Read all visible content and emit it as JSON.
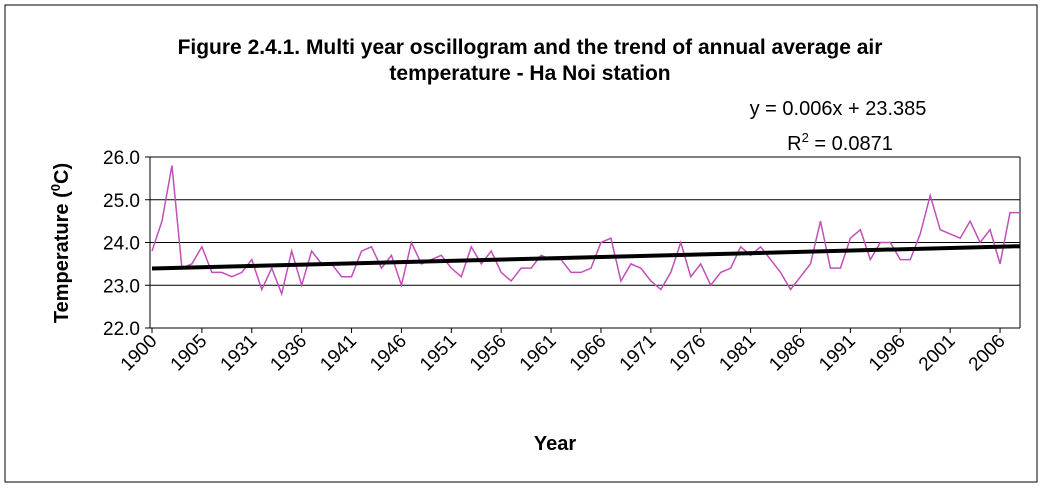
{
  "chart_data": {
    "type": "line",
    "title": [
      "Figure 2.4.1. Multi year oscillogram and the trend of annual average air",
      "temperature - Ha Noi station"
    ],
    "x_label": "Year",
    "y_label": [
      "Temperature (",
      "0",
      "C)"
    ],
    "categories": [
      "1900",
      null,
      null,
      null,
      null,
      "1905",
      null,
      null,
      null,
      null,
      "1931",
      null,
      null,
      null,
      null,
      "1936",
      null,
      null,
      null,
      null,
      "1941",
      null,
      null,
      null,
      null,
      "1946",
      null,
      null,
      null,
      null,
      "1951",
      null,
      null,
      null,
      null,
      "1956",
      null,
      null,
      null,
      null,
      "1961",
      null,
      null,
      null,
      null,
      "1966",
      null,
      null,
      null,
      null,
      "1971",
      null,
      null,
      null,
      null,
      "1976",
      null,
      null,
      null,
      null,
      "1981",
      null,
      null,
      null,
      null,
      "1986",
      null,
      null,
      null,
      null,
      "1991",
      null,
      null,
      null,
      null,
      "1996",
      null,
      null,
      null,
      null,
      "2001",
      null,
      null,
      null,
      null,
      "2006",
      null,
      null
    ],
    "series": [
      {
        "name": "Temperature",
        "color": "#c050b8",
        "values": [
          23.8,
          24.5,
          25.8,
          23.4,
          23.5,
          23.9,
          23.3,
          23.3,
          23.2,
          23.3,
          23.6,
          22.9,
          23.4,
          22.8,
          23.8,
          23.0,
          23.8,
          23.5,
          23.5,
          23.2,
          23.2,
          23.8,
          23.9,
          23.4,
          23.7,
          23.0,
          24.0,
          23.5,
          23.6,
          23.7,
          23.4,
          23.2,
          23.9,
          23.5,
          23.8,
          23.3,
          23.1,
          23.4,
          23.4,
          23.7,
          23.6,
          23.6,
          23.3,
          23.3,
          23.4,
          24.0,
          24.1,
          23.1,
          23.5,
          23.4,
          23.1,
          22.9,
          23.3,
          24.0,
          23.2,
          23.5,
          23.0,
          23.3,
          23.4,
          23.9,
          23.7,
          23.9,
          23.6,
          23.3,
          22.9,
          23.2,
          23.5,
          24.5,
          23.4,
          23.4,
          24.1,
          24.3,
          23.6,
          24.0,
          24.0,
          23.6,
          23.6,
          24.2,
          25.1,
          24.3,
          24.2,
          24.1,
          24.5,
          24.0,
          24.3,
          23.5,
          24.7,
          24.7
        ]
      }
    ],
    "trendline": {
      "slope": 0.006,
      "intercept": 23.385,
      "color": "#000000",
      "equation": "y = 0.006x + 23.385",
      "r2_label": [
        "R",
        "2",
        " = 0.0871"
      ]
    },
    "ylim": [
      22.0,
      26.0
    ],
    "yticks": [
      {
        "value": 22,
        "label": "22.0"
      },
      {
        "value": 23,
        "label": "23.0"
      },
      {
        "value": 24,
        "label": "24.0"
      },
      {
        "value": 25,
        "label": "25.0"
      },
      {
        "value": 26,
        "label": "26.0"
      }
    ],
    "grid": true
  }
}
